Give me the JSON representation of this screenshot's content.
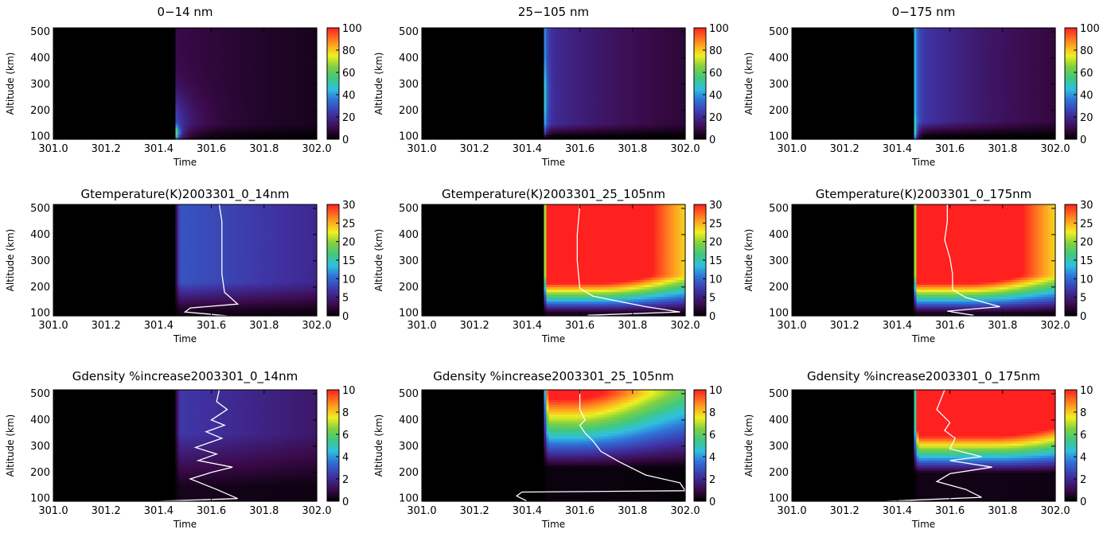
{
  "chart_data": [
    {
      "type": "heatmap",
      "title": "0−14 nm",
      "xlabel": "Time",
      "ylabel": "Altitude (km)",
      "xlim": [
        301.0,
        302.0
      ],
      "ylim": [
        90,
        515
      ],
      "xticks": [
        "301.0",
        "301.2",
        "301.4",
        "301.6",
        "301.8",
        "302.0"
      ],
      "yticks": [
        "100",
        "200",
        "300",
        "400",
        "500"
      ],
      "colorbar": {
        "range": [
          0,
          100
        ],
        "ticks": [
          "0",
          "20",
          "40",
          "60",
          "80",
          "100"
        ]
      },
      "field": "pulse_low",
      "profile": []
    },
    {
      "type": "heatmap",
      "title": "25−105 nm",
      "xlabel": "Time",
      "ylabel": "Altitude (km)",
      "xlim": [
        301.0,
        302.0
      ],
      "ylim": [
        90,
        515
      ],
      "xticks": [
        "301.0",
        "301.2",
        "301.4",
        "301.6",
        "301.8",
        "302.0"
      ],
      "yticks": [
        "100",
        "200",
        "300",
        "400",
        "500"
      ],
      "colorbar": {
        "range": [
          0,
          100
        ],
        "ticks": [
          "0",
          "20",
          "40",
          "60",
          "80",
          "100"
        ]
      },
      "field": "pulse_mid",
      "profile": []
    },
    {
      "type": "heatmap",
      "title": "0−175 nm",
      "xlabel": "Time",
      "ylabel": "Altitude (km)",
      "xlim": [
        301.0,
        302.0
      ],
      "ylim": [
        90,
        515
      ],
      "xticks": [
        "301.0",
        "301.2",
        "301.4",
        "301.6",
        "301.8",
        "302.0"
      ],
      "yticks": [
        "100",
        "200",
        "300",
        "400",
        "500"
      ],
      "colorbar": {
        "range": [
          0,
          100
        ],
        "ticks": [
          "0",
          "20",
          "40",
          "60",
          "80",
          "100"
        ]
      },
      "field": "pulse_all",
      "profile": []
    },
    {
      "type": "heatmap",
      "title": "Gtemperature(K)2003301_0_14nm",
      "xlabel": "Time",
      "ylabel": "Altitude (km)",
      "xlim": [
        301.0,
        302.0
      ],
      "ylim": [
        90,
        515
      ],
      "xticks": [
        "301.0",
        "301.2",
        "301.4",
        "301.6",
        "301.8",
        "302.0"
      ],
      "yticks": [
        "100",
        "200",
        "300",
        "400",
        "500"
      ],
      "colorbar": {
        "range": [
          0,
          30
        ],
        "ticks": [
          "0",
          "5",
          "10",
          "15",
          "20",
          "25",
          "30"
        ]
      },
      "field": "temp_weak",
      "profile": [
        [
          301.66,
          90
        ],
        [
          301.5,
          105
        ],
        [
          301.52,
          120
        ],
        [
          301.7,
          135
        ],
        [
          301.65,
          180
        ],
        [
          301.64,
          250
        ],
        [
          301.64,
          350
        ],
        [
          301.64,
          450
        ],
        [
          301.63,
          515
        ]
      ]
    },
    {
      "type": "heatmap",
      "title": "Gtemperature(K)2003301_25_105nm",
      "xlabel": "Time",
      "ylabel": "Altitude (km)",
      "xlim": [
        301.0,
        302.0
      ],
      "ylim": [
        90,
        515
      ],
      "xticks": [
        "301.0",
        "301.2",
        "301.4",
        "301.6",
        "301.8",
        "302.0"
      ],
      "yticks": [
        "100",
        "200",
        "300",
        "400",
        "500"
      ],
      "colorbar": {
        "range": [
          0,
          30
        ],
        "ticks": [
          "0",
          "5",
          "10",
          "15",
          "20",
          "25",
          "30"
        ]
      },
      "field": "temp_strong",
      "profile": [
        [
          301.63,
          92
        ],
        [
          301.98,
          105
        ],
        [
          301.85,
          125
        ],
        [
          301.65,
          165
        ],
        [
          301.6,
          195
        ],
        [
          301.59,
          300
        ],
        [
          301.59,
          400
        ],
        [
          301.6,
          515
        ]
      ]
    },
    {
      "type": "heatmap",
      "title": "Gtemperature(K)2003301_0_175nm",
      "xlabel": "Time",
      "ylabel": "Altitude (km)",
      "xlim": [
        301.0,
        302.0
      ],
      "ylim": [
        90,
        515
      ],
      "xticks": [
        "301.0",
        "301.2",
        "301.4",
        "301.6",
        "301.8",
        "302.0"
      ],
      "yticks": [
        "100",
        "200",
        "300",
        "400",
        "500"
      ],
      "colorbar": {
        "range": [
          0,
          30
        ],
        "ticks": [
          "0",
          "5",
          "10",
          "15",
          "20",
          "25",
          "30"
        ]
      },
      "field": "temp_strong",
      "profile": [
        [
          301.69,
          92
        ],
        [
          301.59,
          108
        ],
        [
          301.79,
          125
        ],
        [
          301.66,
          160
        ],
        [
          301.61,
          190
        ],
        [
          301.61,
          250
        ],
        [
          301.6,
          310
        ],
        [
          301.58,
          380
        ],
        [
          301.59,
          450
        ],
        [
          301.59,
          515
        ]
      ]
    },
    {
      "type": "heatmap",
      "title": "Gdensity %increase2003301_0_14nm",
      "xlabel": "Time",
      "ylabel": "Altitude (km)",
      "xlim": [
        301.0,
        302.0
      ],
      "ylim": [
        90,
        515
      ],
      "xticks": [
        "301.0",
        "301.2",
        "301.4",
        "301.6",
        "301.8",
        "302.0"
      ],
      "yticks": [
        "100",
        "200",
        "300",
        "400",
        "500"
      ],
      "colorbar": {
        "range": [
          0,
          10
        ],
        "ticks": [
          "0",
          "2",
          "4",
          "6",
          "8",
          "10"
        ]
      },
      "field": "dens_weak",
      "profile": [
        [
          301.4,
          90
        ],
        [
          301.7,
          100
        ],
        [
          301.62,
          135
        ],
        [
          301.52,
          175
        ],
        [
          301.6,
          200
        ],
        [
          301.68,
          220
        ],
        [
          301.55,
          245
        ],
        [
          301.62,
          270
        ],
        [
          301.54,
          295
        ],
        [
          301.64,
          330
        ],
        [
          301.58,
          355
        ],
        [
          301.65,
          380
        ],
        [
          301.6,
          400
        ],
        [
          301.66,
          440
        ],
        [
          301.62,
          470
        ],
        [
          301.63,
          515
        ]
      ]
    },
    {
      "type": "heatmap",
      "title": "Gdensity %increase2003301_25_105nm",
      "xlabel": "Time",
      "ylabel": "Altitude (km)",
      "xlim": [
        301.0,
        302.0
      ],
      "ylim": [
        90,
        515
      ],
      "xticks": [
        "301.0",
        "301.2",
        "301.4",
        "301.6",
        "301.8",
        "302.0"
      ],
      "yticks": [
        "100",
        "200",
        "300",
        "400",
        "500"
      ],
      "colorbar": {
        "range": [
          0,
          10
        ],
        "ticks": [
          "0",
          "2",
          "4",
          "6",
          "8",
          "10"
        ]
      },
      "field": "dens_mid",
      "profile": [
        [
          301.4,
          90
        ],
        [
          301.36,
          110
        ],
        [
          301.38,
          125
        ],
        [
          302.0,
          130
        ],
        [
          301.98,
          160
        ],
        [
          301.85,
          190
        ],
        [
          301.75,
          240
        ],
        [
          301.68,
          280
        ],
        [
          301.65,
          320
        ],
        [
          301.62,
          350
        ],
        [
          301.6,
          380
        ],
        [
          301.62,
          400
        ],
        [
          301.6,
          440
        ],
        [
          301.6,
          515
        ]
      ]
    },
    {
      "type": "heatmap",
      "title": "Gdensity %increase2003301_0_175nm",
      "xlabel": "Time",
      "ylabel": "Altitude (km)",
      "xlim": [
        301.0,
        302.0
      ],
      "ylim": [
        90,
        515
      ],
      "xticks": [
        "301.0",
        "301.2",
        "301.4",
        "301.6",
        "301.8",
        "302.0"
      ],
      "yticks": [
        "100",
        "200",
        "300",
        "400",
        "500"
      ],
      "colorbar": {
        "range": [
          0,
          10
        ],
        "ticks": [
          "0",
          "2",
          "4",
          "6",
          "8",
          "10"
        ]
      },
      "field": "dens_all",
      "profile": [
        [
          301.36,
          90
        ],
        [
          301.72,
          105
        ],
        [
          301.66,
          135
        ],
        [
          301.55,
          165
        ],
        [
          301.6,
          195
        ],
        [
          301.76,
          220
        ],
        [
          301.6,
          245
        ],
        [
          301.72,
          260
        ],
        [
          301.6,
          290
        ],
        [
          301.62,
          330
        ],
        [
          301.58,
          360
        ],
        [
          301.6,
          390
        ],
        [
          301.55,
          440
        ],
        [
          301.58,
          515
        ]
      ]
    }
  ]
}
